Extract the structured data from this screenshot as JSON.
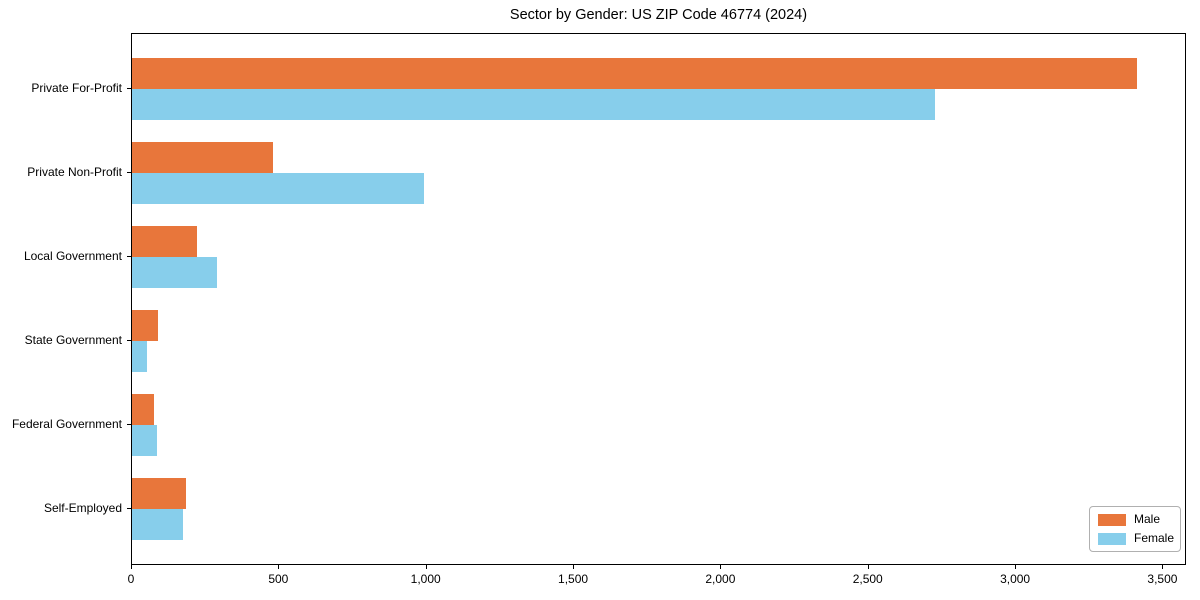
{
  "title": "Sector by Gender: US ZIP Code 46774 (2024)",
  "chart_data": {
    "type": "bar",
    "orientation": "horizontal",
    "title": "Sector by Gender: US ZIP Code 46774 (2024)",
    "categories": [
      "Private For-Profit",
      "Private Non-Profit",
      "Local Government",
      "State Government",
      "Federal Government",
      "Self-Employed"
    ],
    "series": [
      {
        "name": "Male",
        "color": "#e8763b",
        "values": [
          3410,
          480,
          220,
          88,
          74,
          183
        ]
      },
      {
        "name": "Female",
        "color": "#87ceeb",
        "values": [
          2725,
          990,
          290,
          50,
          84,
          172
        ]
      }
    ],
    "xlabel": "",
    "ylabel": "",
    "xlim": [
      0,
      3580
    ],
    "xticks": [
      0,
      500,
      1000,
      1500,
      2000,
      2500,
      3000,
      3500
    ],
    "xtick_labels": [
      "0",
      "500",
      "1,000",
      "1,500",
      "2,000",
      "2,500",
      "3,000",
      "3,500"
    ],
    "grid": false,
    "legend_position": "lower right"
  }
}
